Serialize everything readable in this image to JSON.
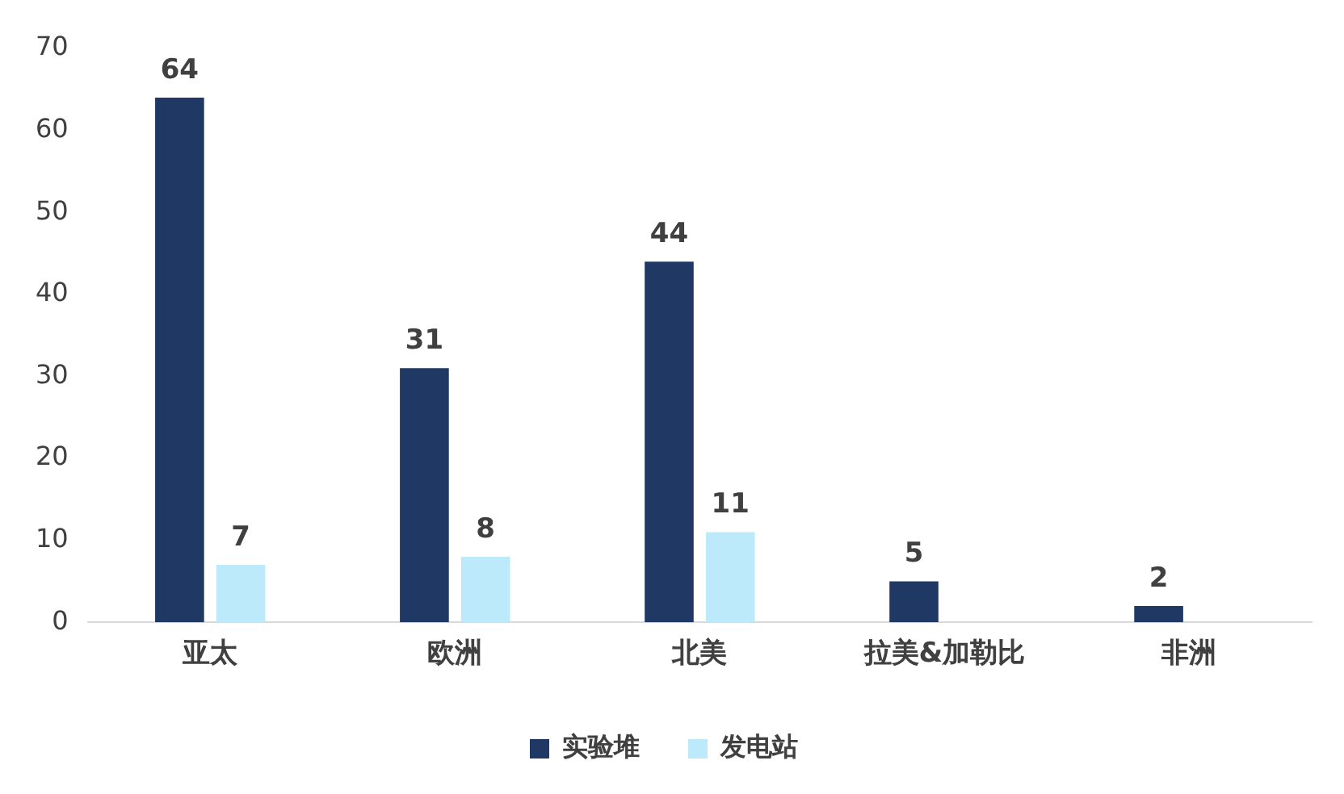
{
  "chart_data": {
    "type": "bar",
    "categories": [
      "亚太",
      "欧洲",
      "北美",
      "拉美&加勒比",
      "非洲"
    ],
    "series": [
      {
        "name": "实验堆",
        "color": "#1f3864",
        "values": [
          64,
          31,
          44,
          5,
          2
        ]
      },
      {
        "name": "发电站",
        "color": "#bdeafa",
        "values": [
          7,
          8,
          11,
          null,
          null
        ]
      }
    ],
    "ylim": [
      0,
      70
    ],
    "yticks": [
      0,
      10,
      20,
      30,
      40,
      50,
      60,
      70
    ],
    "grid": false,
    "legend": "bottom",
    "data_labels": true
  }
}
